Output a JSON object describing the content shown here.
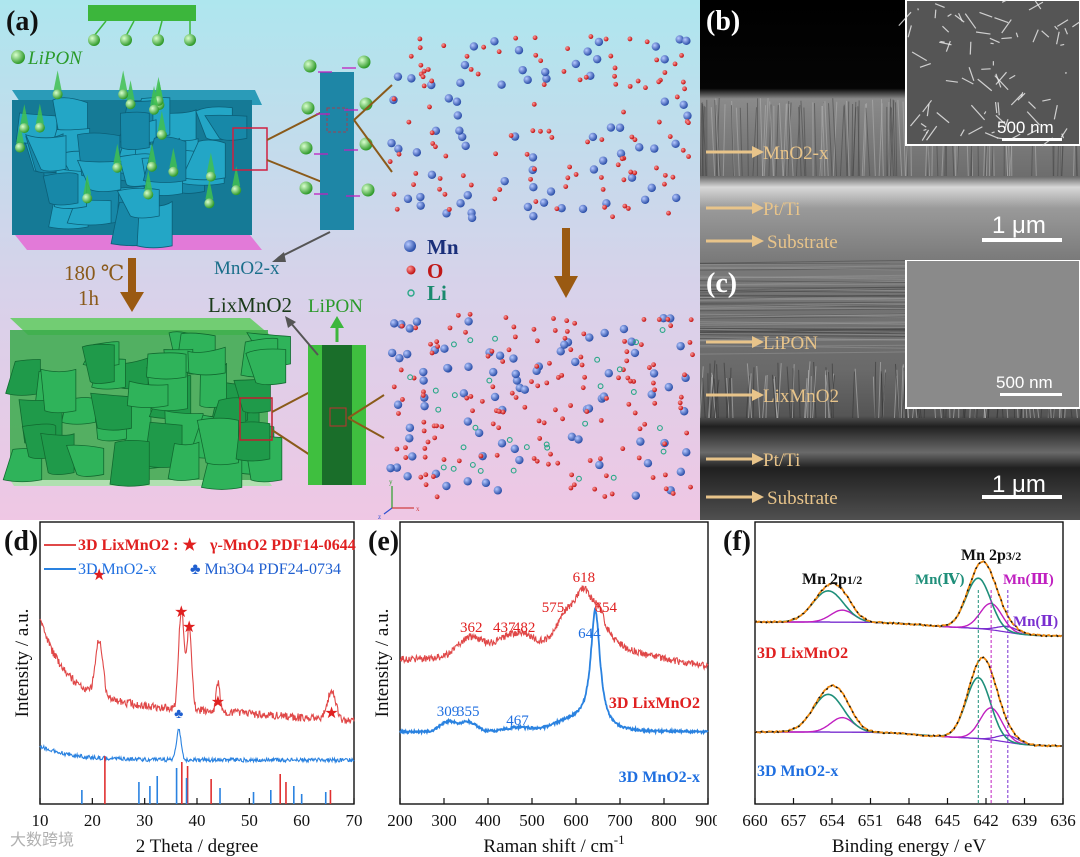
{
  "panel_a": {
    "label": "(a)",
    "lipon_legend": "LiPON",
    "mno2_label": "MnO2-x",
    "condition_temp": "180 ℃",
    "condition_time": "1h",
    "lixmno2_label": "LixMnO2",
    "lipon_label": "LiPON",
    "legend": [
      {
        "name": "Mn",
        "color": "#3a5fb8"
      },
      {
        "name": "O",
        "color": "#d42020"
      },
      {
        "name": "Li",
        "color": "#2aa888"
      }
    ],
    "axis_x": "x",
    "axis_y": "y",
    "axis_z": "z"
  },
  "panel_b": {
    "label": "(b)",
    "layers": [
      "MnO2-x",
      "Pt/Ti",
      "Substrate"
    ],
    "scale_main": "1 μm",
    "scale_inset": "500 nm"
  },
  "panel_c": {
    "label": "(c)",
    "layers": [
      "LiPON",
      "LixMnO2",
      "Pt/Ti",
      "Substrate"
    ],
    "scale_main": "1 μm",
    "scale_inset": "500 nm"
  },
  "chart_data": [
    {
      "type": "line",
      "panel": "(d)",
      "xlabel": "2 Theta / degree",
      "ylabel": "Intensity / a.u.",
      "xlim": [
        10,
        70
      ],
      "xticks": [
        10,
        20,
        30,
        40,
        50,
        60,
        70
      ],
      "legend": [
        {
          "name": "3D LixMnO2 : ★",
          "color": "#e04848"
        },
        {
          "name": "3D MnO2-x",
          "color": "#2a82e0"
        }
      ],
      "references": [
        {
          "name": "γ-MnO2 PDF14-0644",
          "color": "#e02020",
          "marker": "★"
        },
        {
          "name": "Mn3O4 PDF24-0734",
          "color": "#1f5fd0",
          "marker": "♣"
        }
      ],
      "peaks_lixmno2": [
        21.3,
        37.0,
        38.5,
        44.0,
        65.7
      ],
      "peaks_mno2": [
        36.5
      ],
      "ref_sticks_red": [
        22.4,
        37.1,
        38.2,
        42.7,
        55.9,
        57.0,
        65.5
      ],
      "ref_sticks_blue": [
        18.0,
        28.9,
        31.0,
        32.4,
        36.1,
        38.0,
        44.4,
        50.8,
        54.1,
        58.5,
        60.0,
        64.6
      ]
    },
    {
      "type": "line",
      "panel": "(e)",
      "xlabel": "Raman shift / cm",
      "xlabel_sup": "-1",
      "ylabel": "Intensity / a.u.",
      "xlim": [
        200,
        900
      ],
      "xticks": [
        200,
        300,
        400,
        500,
        600,
        700,
        800,
        900
      ],
      "series": [
        {
          "name": "3D LixMnO2",
          "color": "#e04848",
          "peaks": [
            "362",
            "437",
            "482",
            "575",
            "618",
            "654"
          ]
        },
        {
          "name": "3D MnO2-x",
          "color": "#2a82e0",
          "peaks": [
            "309",
            "355",
            "467",
            "644"
          ]
        }
      ]
    },
    {
      "type": "line",
      "panel": "(f)",
      "xlabel": "Binding energy / eV",
      "xlim": [
        660,
        636
      ],
      "xticks": [
        660,
        657,
        654,
        651,
        648,
        645,
        642,
        639,
        636
      ],
      "regions": [
        "Mn 2p1/2",
        "Mn 2p3/2"
      ],
      "components": [
        {
          "name": "Mn(Ⅳ)",
          "color": "#1f8f7a"
        },
        {
          "name": "Mn(Ⅲ)",
          "color": "#c020c0"
        },
        {
          "name": "Mn(Ⅱ)",
          "color": "#7a2fd0"
        }
      ],
      "samples": [
        {
          "name": "3D LixMnO2",
          "color": "#e02020"
        },
        {
          "name": "3D MnO2-x",
          "color": "#1f6fe0"
        }
      ]
    }
  ],
  "watermark": "大数跨境"
}
